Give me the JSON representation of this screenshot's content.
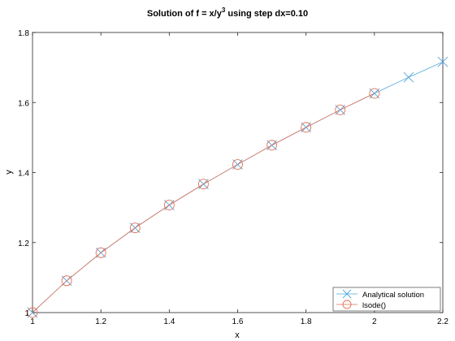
{
  "chart_data": {
    "type": "line",
    "title": {
      "main": "Solution of f = x/y",
      "sup": "3",
      "rest": " using step dx=0.10"
    },
    "xlabel": "x",
    "ylabel": "y",
    "xlim": [
      1,
      2.2
    ],
    "ylim": [
      1,
      1.8
    ],
    "xticks": [
      1,
      1.2,
      1.4,
      1.6,
      1.8,
      2,
      2.2
    ],
    "xtick_labels": [
      "1",
      "1.2",
      "1.4",
      "1.6",
      "1.8",
      "2",
      "2.2"
    ],
    "yticks": [
      1,
      1.2,
      1.4,
      1.6,
      1.8
    ],
    "ytick_labels": [
      "1",
      "1.2",
      "1.4",
      "1.6",
      "1.8"
    ],
    "grid": false,
    "legend_position": "bottom-right",
    "series": [
      {
        "name": "Analytical solution",
        "color": "#4fa6dc",
        "marker": "x",
        "x": [
          1,
          1.1,
          1.2,
          1.3,
          1.4,
          1.5,
          1.6,
          1.7,
          1.8,
          1.9,
          2.0,
          2.1,
          2.2
        ],
        "y": [
          1,
          1.091,
          1.171,
          1.242,
          1.307,
          1.367,
          1.423,
          1.478,
          1.529,
          1.579,
          1.626,
          1.672,
          1.716
        ]
      },
      {
        "name": "lsode()",
        "color": "#e07058",
        "marker": "o",
        "x": [
          1,
          1.1,
          1.2,
          1.3,
          1.4,
          1.5,
          1.6,
          1.7,
          1.8,
          1.9,
          2.0
        ],
        "y": [
          1,
          1.091,
          1.171,
          1.242,
          1.307,
          1.367,
          1.423,
          1.478,
          1.529,
          1.579,
          1.626
        ]
      }
    ]
  }
}
